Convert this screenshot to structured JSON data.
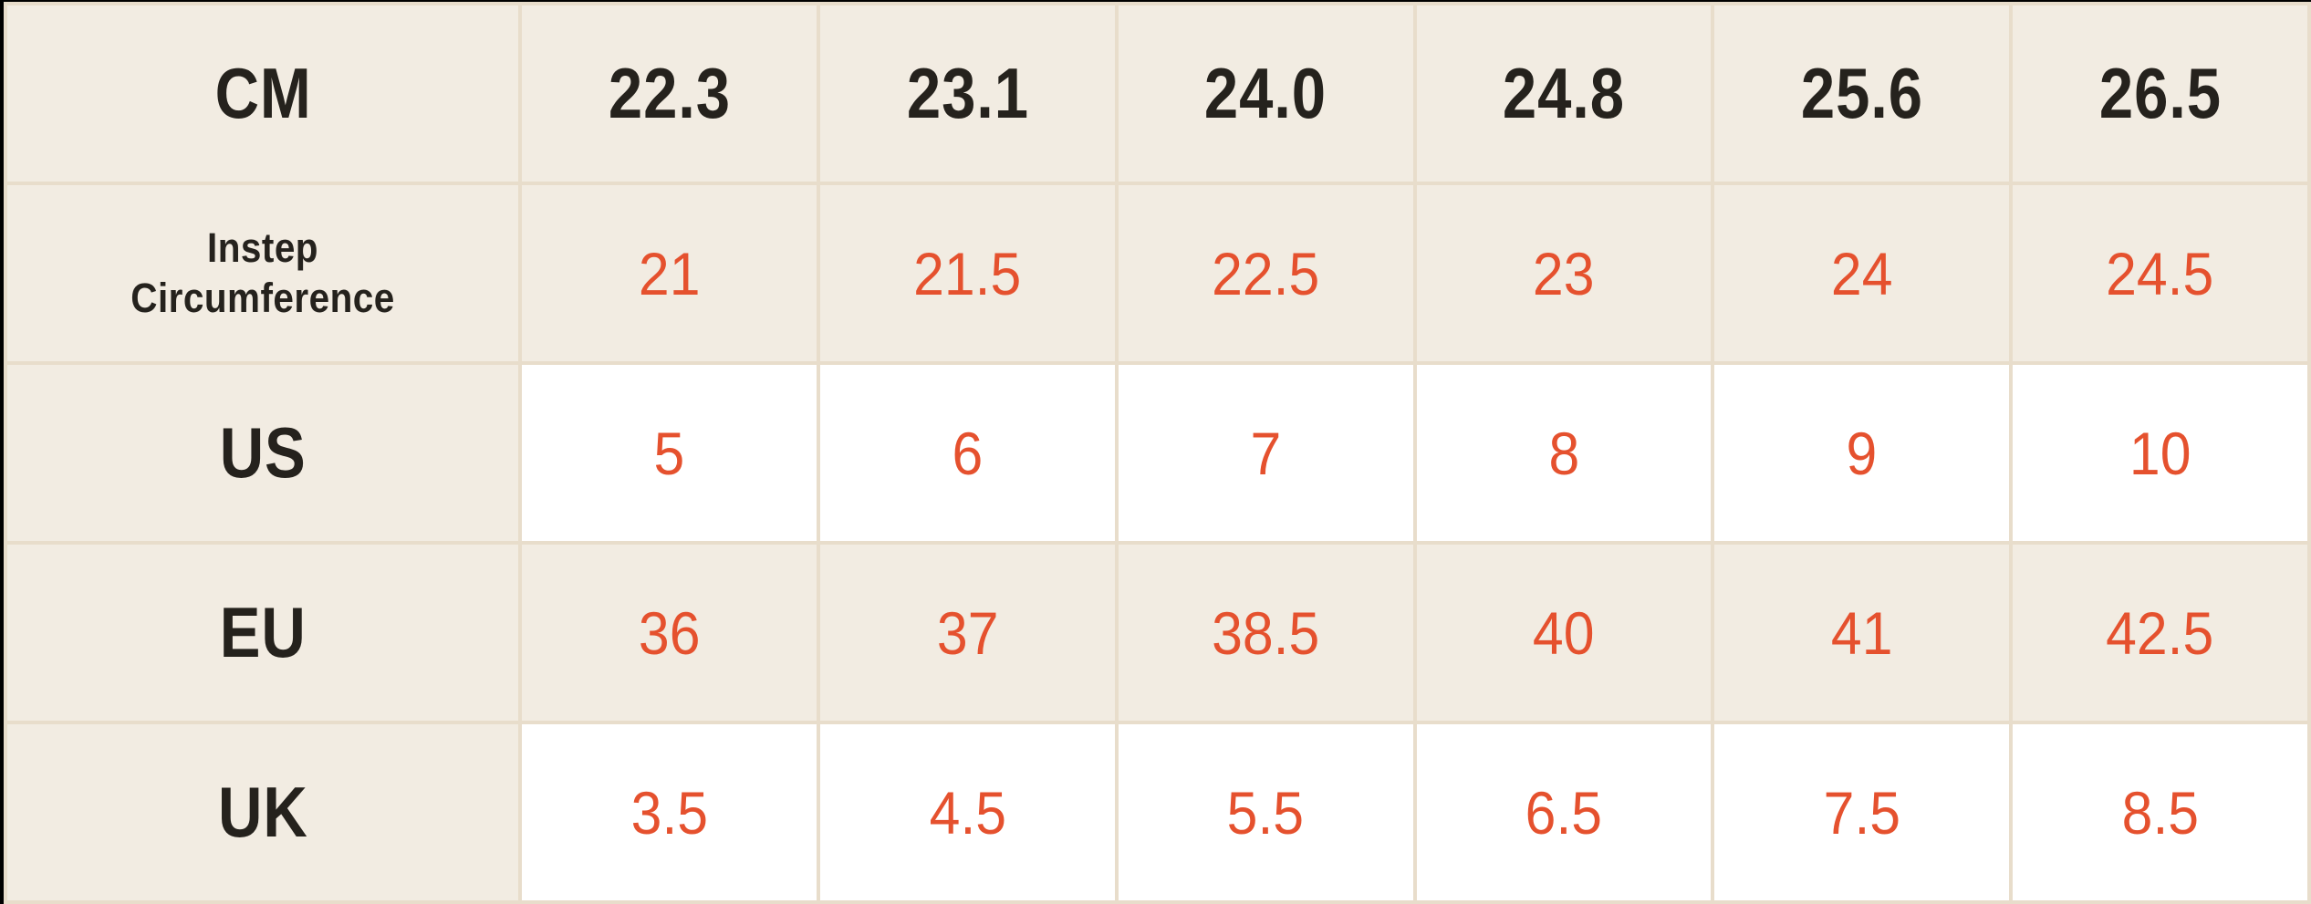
{
  "table": {
    "colors": {
      "cell_beige": "#F2ECE2",
      "cell_white": "#FFFFFF",
      "grid_border": "#E8DDCB",
      "header_text": "#25221D",
      "value_text": "#E5512E",
      "edge_black": "#000000"
    },
    "header": {
      "unit_label": "CM",
      "sizes": [
        "22.3",
        "23.1",
        "24.0",
        "24.8",
        "25.6",
        "26.5"
      ]
    },
    "rows": [
      {
        "label": "Instep Circumference",
        "values": [
          "21",
          "21.5",
          "22.5",
          "23",
          "24",
          "24.5"
        ]
      },
      {
        "label": "US",
        "values": [
          "5",
          "6",
          "7",
          "8",
          "9",
          "10"
        ]
      },
      {
        "label": "EU",
        "values": [
          "36",
          "37",
          "38.5",
          "40",
          "41",
          "42.5"
        ]
      },
      {
        "label": "UK",
        "values": [
          "3.5",
          "4.5",
          "5.5",
          "6.5",
          "7.5",
          "8.5"
        ]
      }
    ]
  }
}
